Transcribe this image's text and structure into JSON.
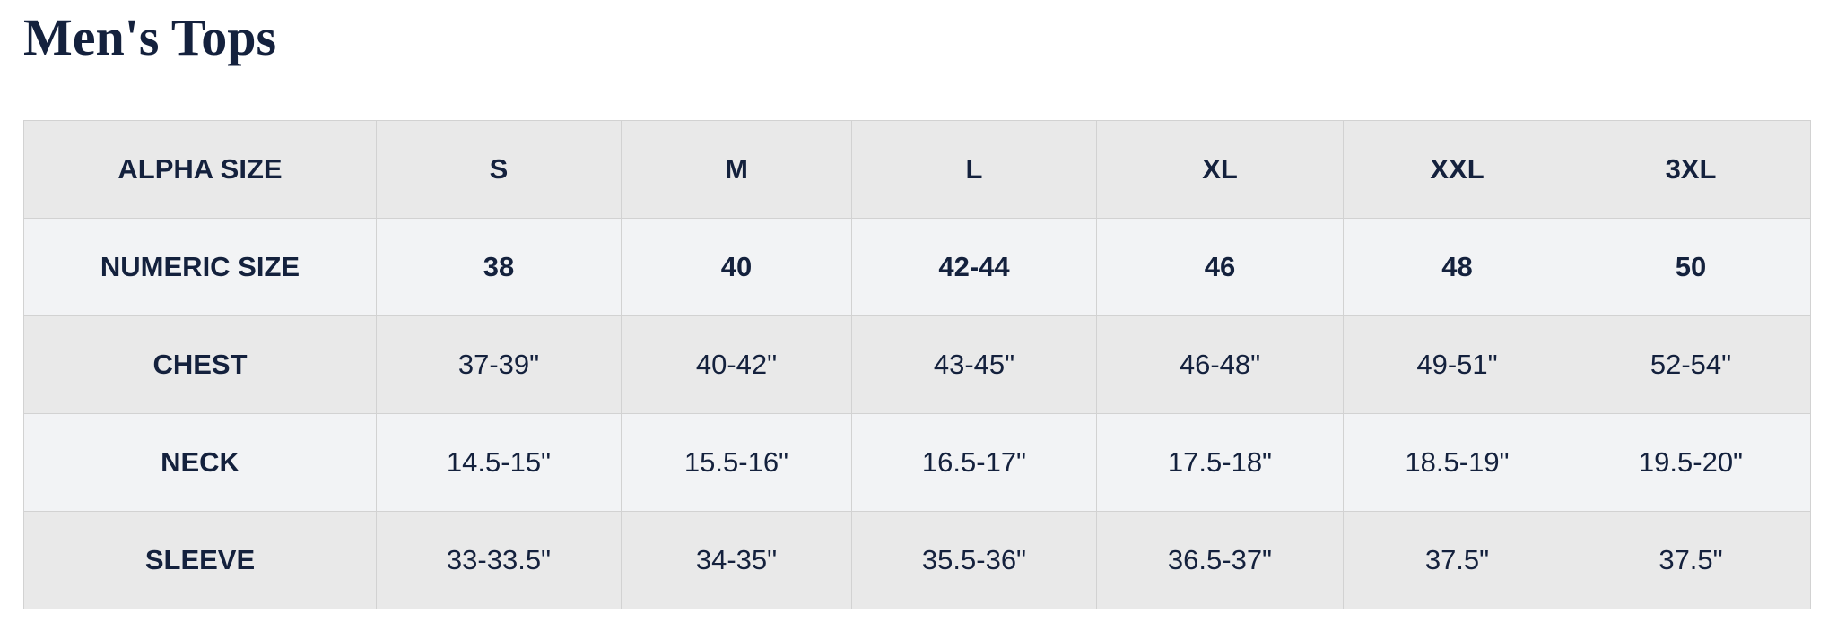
{
  "title": "Men's Tops",
  "table": {
    "rows": [
      {
        "label": "ALPHA SIZE",
        "values": [
          "S",
          "M",
          "L",
          "XL",
          "XXL",
          "3XL"
        ]
      },
      {
        "label": "NUMERIC SIZE",
        "values": [
          "38",
          "40",
          "42-44",
          "46",
          "48",
          "50"
        ]
      },
      {
        "label": "CHEST",
        "values": [
          "37-39\"",
          "40-42\"",
          "43-45\"",
          "46-48\"",
          "49-51\"",
          "52-54\""
        ]
      },
      {
        "label": "NECK",
        "values": [
          "14.5-15\"",
          "15.5-16\"",
          "16.5-17\"",
          "17.5-18\"",
          "18.5-19\"",
          "19.5-20\""
        ]
      },
      {
        "label": "SLEEVE",
        "values": [
          "33-33.5\"",
          "34-35\"",
          "35.5-36\"",
          "36.5-37\"",
          "37.5\"",
          "37.5\""
        ]
      }
    ]
  },
  "colors": {
    "text": "#14213d",
    "row_dark": "#e9e9e9",
    "row_light": "#f2f3f5",
    "border": "#d2d2d2"
  }
}
